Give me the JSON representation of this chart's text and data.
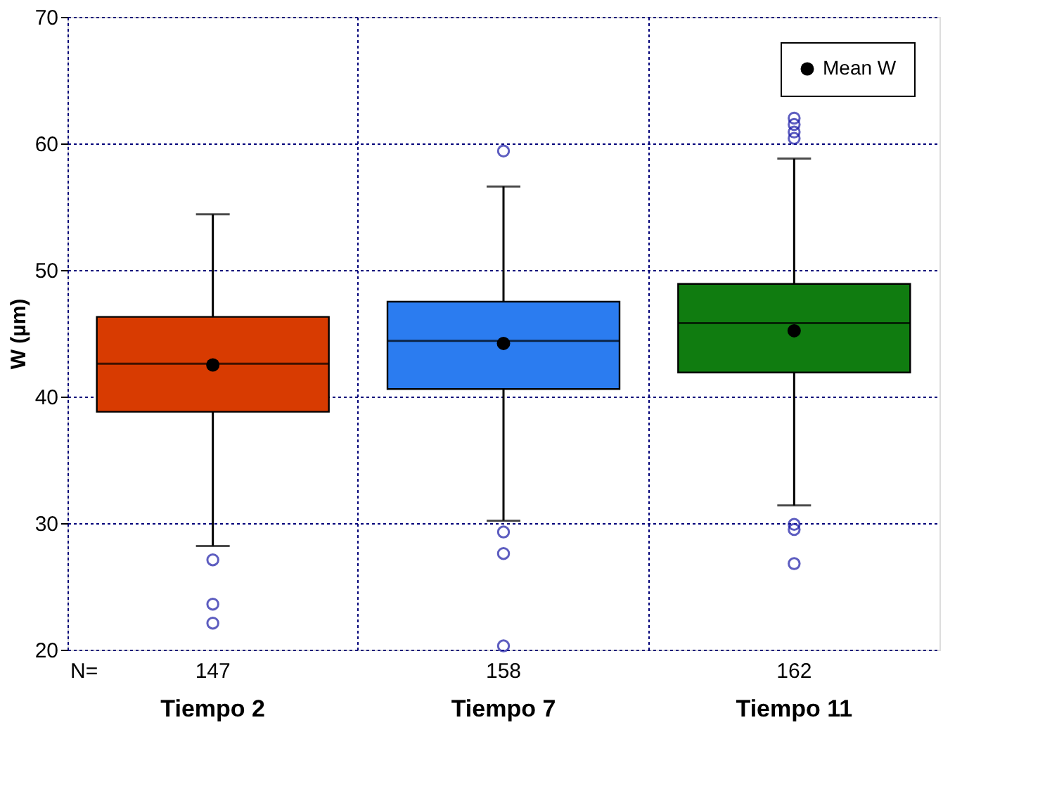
{
  "chart_data": {
    "type": "box",
    "ylabel": "W (µm)",
    "categories": [
      "Tiempo 2",
      "Tiempo 7",
      "Tiempo 11"
    ],
    "colors": [
      "#d83b01",
      "#2b7cf0",
      "#107c10"
    ],
    "boxes": [
      {
        "low": 28.2,
        "q1": 38.8,
        "median": 42.6,
        "q3": 46.3,
        "high": 54.4,
        "outliers": [
          27.1,
          23.6,
          22.1
        ]
      },
      {
        "low": 30.2,
        "q1": 40.6,
        "median": 44.4,
        "q3": 47.5,
        "high": 56.6,
        "outliers": [
          59.4,
          29.3,
          27.6,
          20.3
        ]
      },
      {
        "low": 31.4,
        "q1": 41.9,
        "median": 45.8,
        "q3": 48.9,
        "high": 58.8,
        "outliers": [
          62.0,
          61.5,
          60.9,
          60.4,
          29.9,
          29.5,
          26.8
        ]
      }
    ],
    "series": [
      {
        "name": "Mean W",
        "type": "scatter",
        "color": "#000000",
        "x": [
          "Tiempo 2",
          "Tiempo 7",
          "Tiempo 11"
        ],
        "values": [
          42.5,
          44.2,
          45.2
        ]
      }
    ],
    "ylim": [
      20,
      70
    ],
    "yticks": [
      20,
      30,
      40,
      50,
      60,
      70
    ],
    "annotations": [
      "N=",
      "147",
      "158",
      "162"
    ],
    "grid": true,
    "legend": "top right",
    "marker": "circle"
  }
}
